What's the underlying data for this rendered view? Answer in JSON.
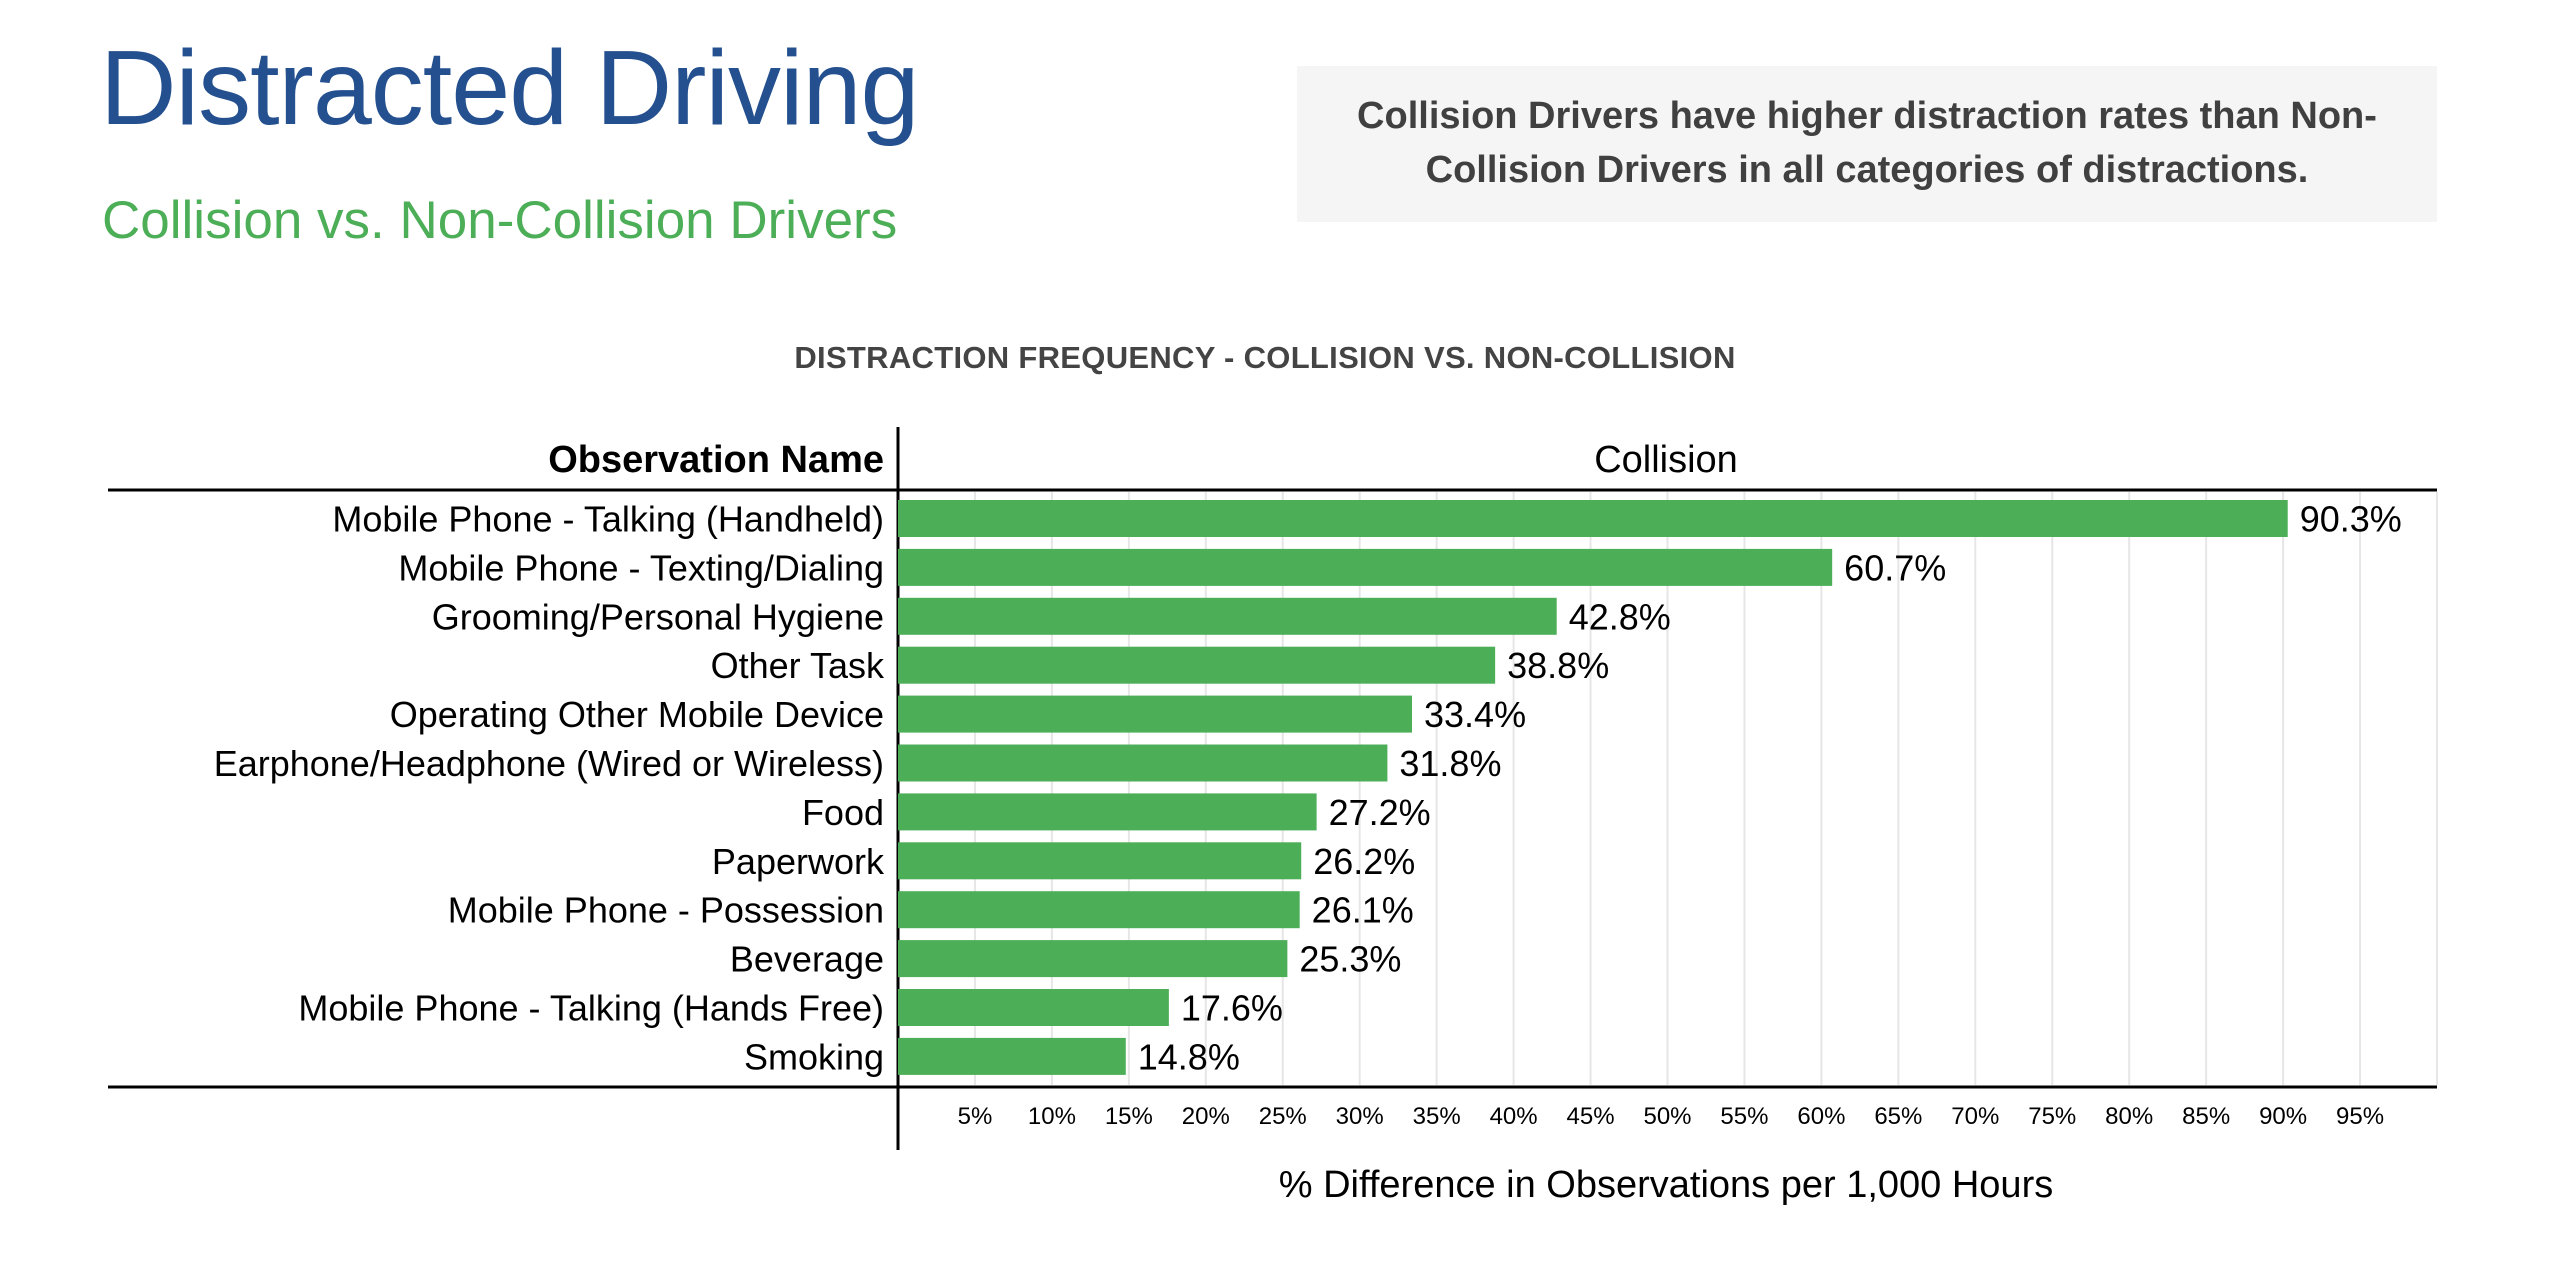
{
  "header": {
    "title": "Distracted Driving",
    "subtitle": "Collision vs. Non-Collision Drivers"
  },
  "callout": {
    "text": "Collision Drivers have higher distraction rates than Non-Collision Drivers in all categories of distractions."
  },
  "colors": {
    "title": "#24508f",
    "subtitle": "#4cae57",
    "bar": "#4cae57"
  },
  "chart_data": {
    "type": "bar",
    "orientation": "horizontal",
    "title": "DISTRACTION FREQUENCY - COLLISION VS. NON-COLLISION",
    "row_header": "Observation Name",
    "column_header": "Collision",
    "xlabel": "% Difference in Observations per 1,000 Hours",
    "xlim": [
      0,
      100
    ],
    "x_ticks": [
      "5%",
      "10%",
      "15%",
      "20%",
      "25%",
      "30%",
      "35%",
      "40%",
      "45%",
      "50%",
      "55%",
      "60%",
      "65%",
      "70%",
      "75%",
      "80%",
      "85%",
      "90%",
      "95%"
    ],
    "grid": true,
    "categories": [
      "Mobile Phone - Talking (Handheld)",
      "Mobile Phone - Texting/Dialing",
      "Grooming/Personal Hygiene",
      "Other Task",
      "Operating Other Mobile Device",
      "Earphone/Headphone (Wired or Wireless)",
      "Food",
      "Paperwork",
      "Mobile Phone - Possession",
      "Beverage",
      "Mobile Phone - Talking (Hands Free)",
      "Smoking"
    ],
    "values": [
      90.3,
      60.7,
      42.8,
      38.8,
      33.4,
      31.8,
      27.2,
      26.2,
      26.1,
      25.3,
      17.6,
      14.8
    ],
    "value_labels": [
      "90.3%",
      "60.7%",
      "42.8%",
      "38.8%",
      "33.4%",
      "31.8%",
      "27.2%",
      "26.2%",
      "26.1%",
      "25.3%",
      "17.6%",
      "14.8%"
    ]
  }
}
